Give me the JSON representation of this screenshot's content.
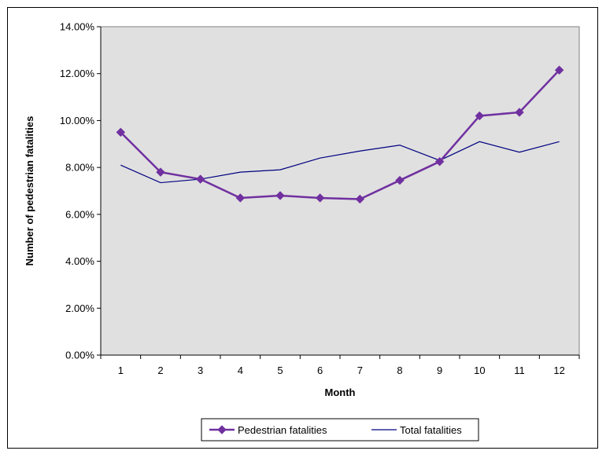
{
  "chart_data": {
    "type": "line",
    "xlabel": "Month",
    "ylabel": "Number of pedestrian fatalities",
    "categories": [
      "1",
      "2",
      "3",
      "4",
      "5",
      "6",
      "7",
      "8",
      "9",
      "10",
      "11",
      "12"
    ],
    "ylim": [
      0,
      14
    ],
    "yticks": [
      "0.00%",
      "2.00%",
      "4.00%",
      "6.00%",
      "8.00%",
      "10.00%",
      "12.00%",
      "14.00%"
    ],
    "grid": false,
    "legend_position": "bottom",
    "plot_background": "#e0e0e0",
    "series": [
      {
        "name": "Pedestrian fatalities",
        "color": "#7030a0",
        "marker": "diamond",
        "values": [
          9.5,
          7.8,
          7.5,
          6.7,
          6.8,
          6.7,
          6.65,
          7.45,
          8.25,
          10.2,
          10.35,
          12.15
        ]
      },
      {
        "name": "Total fatalities",
        "color": "#000080",
        "marker": "none",
        "values": [
          8.1,
          7.35,
          7.5,
          7.8,
          7.9,
          8.4,
          8.7,
          8.95,
          8.3,
          9.1,
          8.65,
          9.1
        ]
      }
    ]
  }
}
